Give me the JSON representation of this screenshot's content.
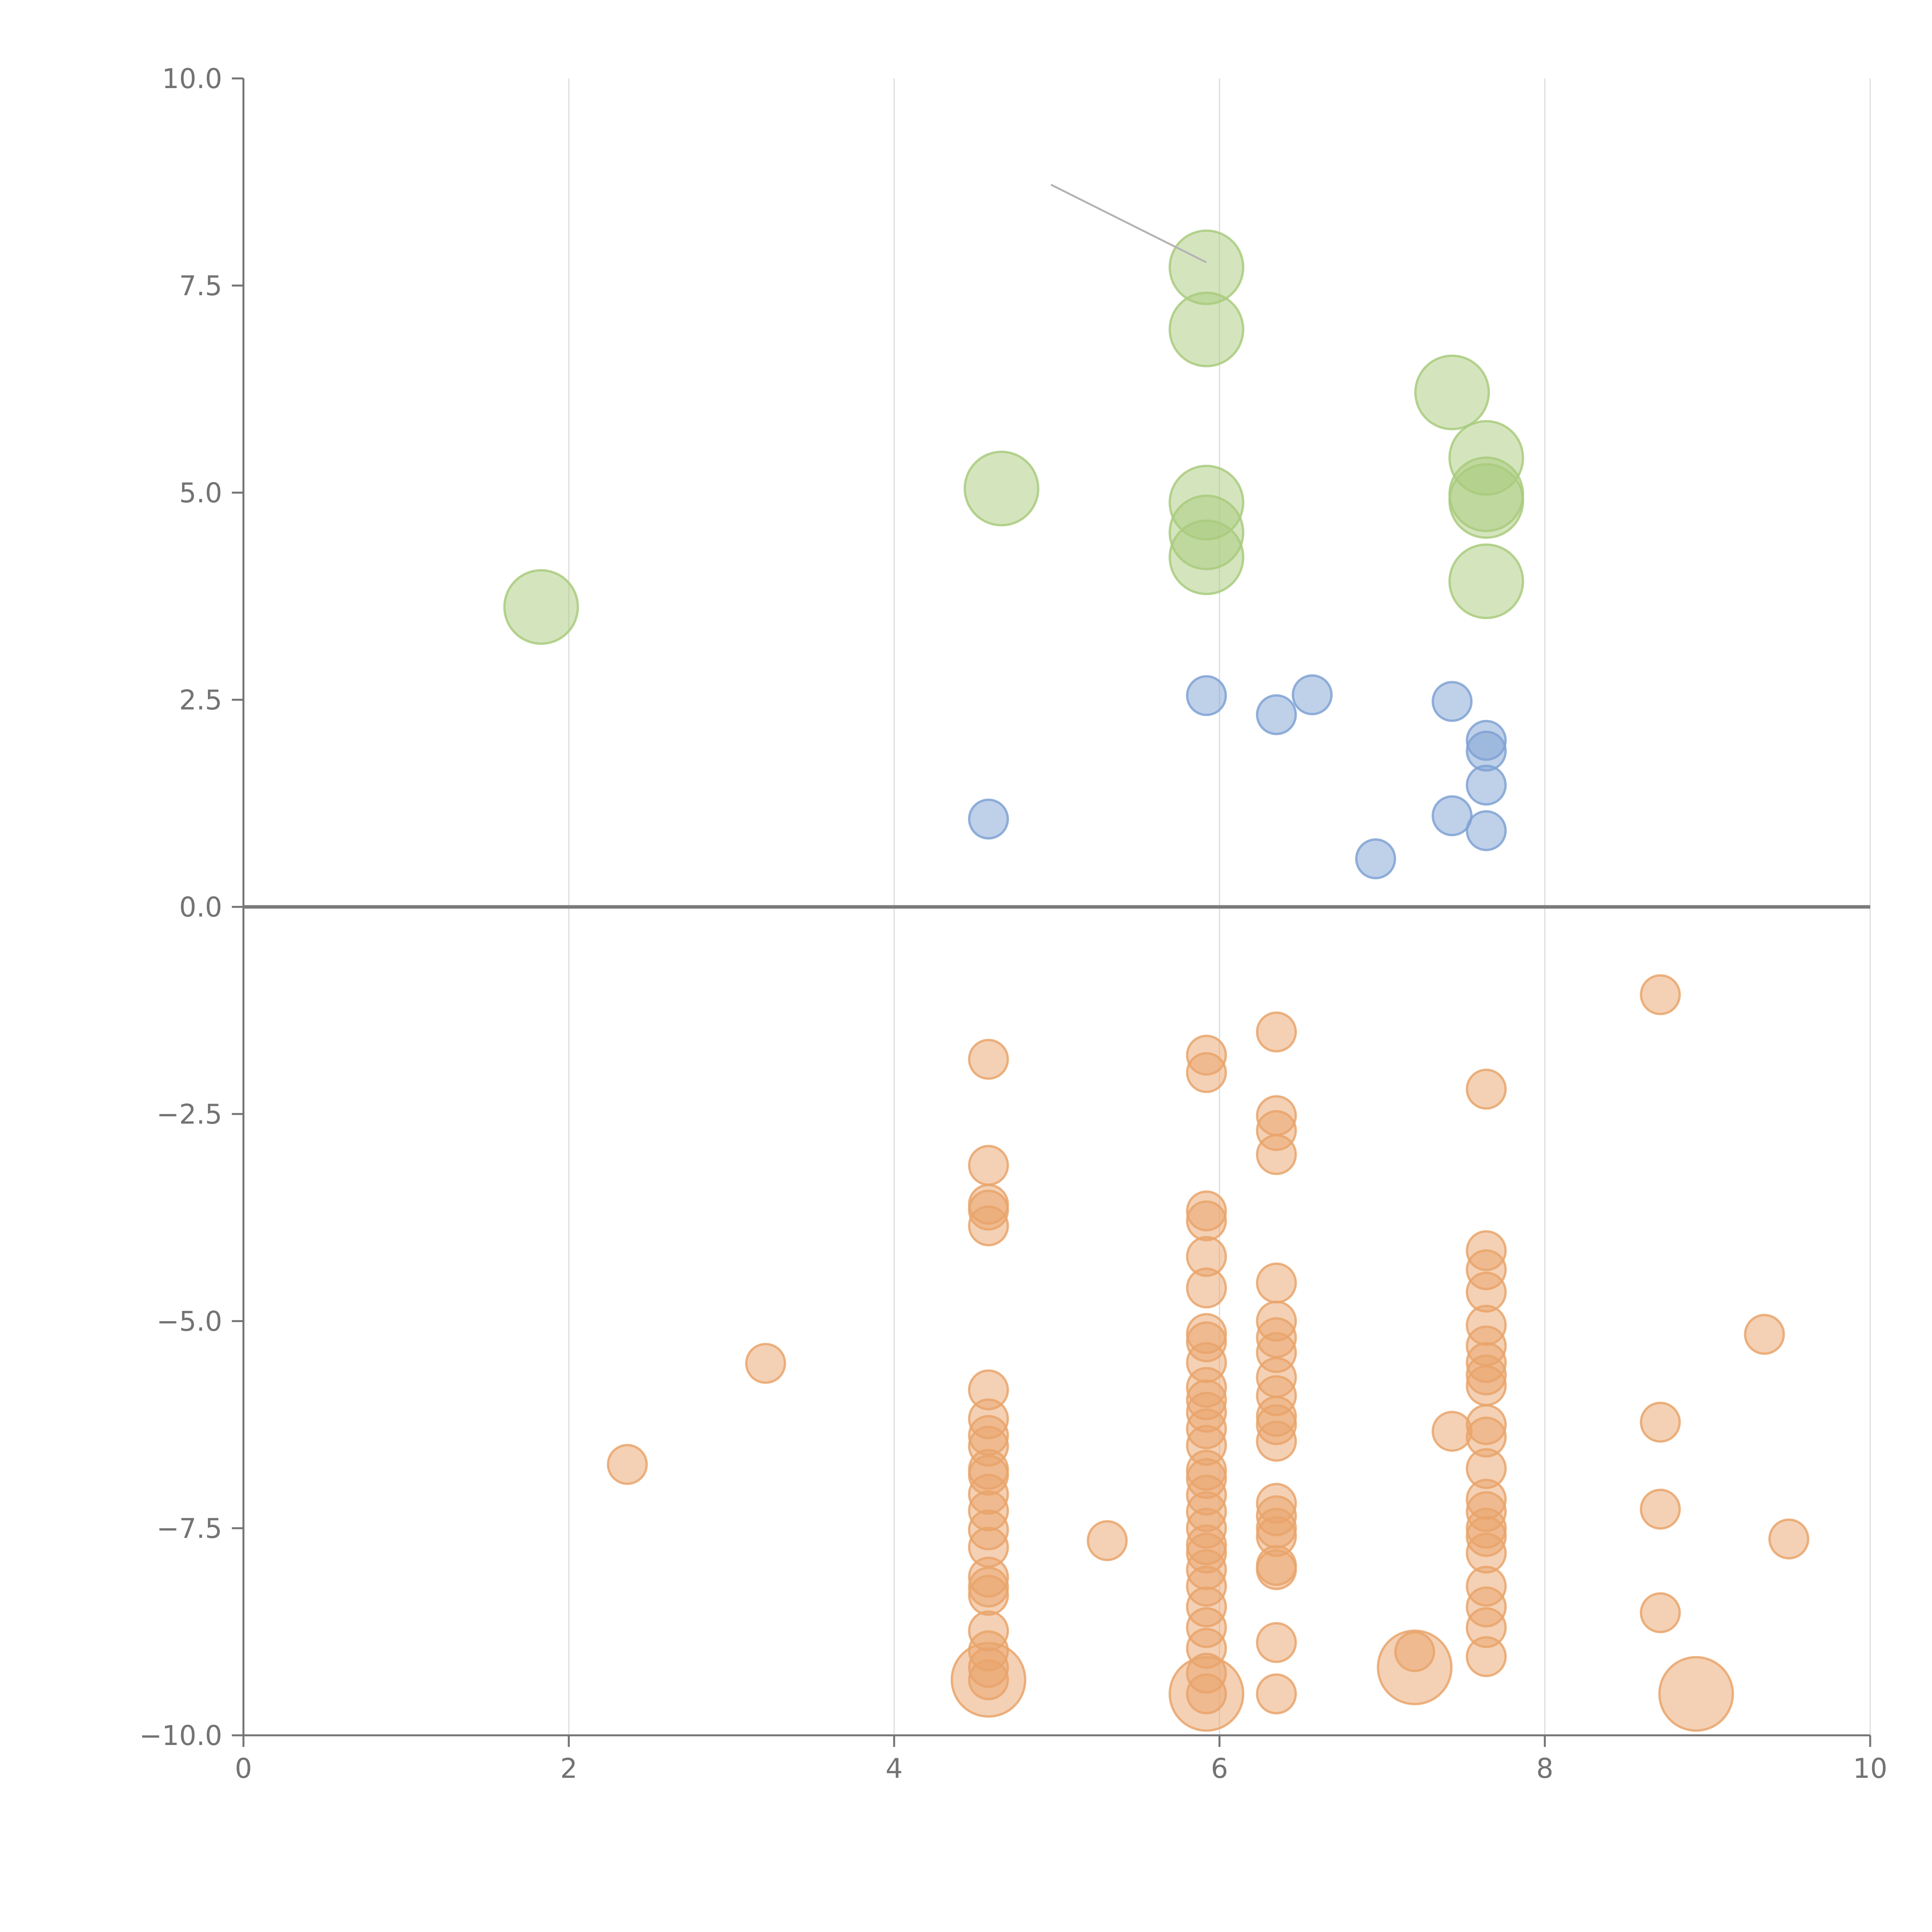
{
  "chart_data": {
    "type": "scatter",
    "title": "",
    "xlabel": "",
    "ylabel": "",
    "xlim": [
      0,
      10
    ],
    "ylim": [
      -10,
      10
    ],
    "x_ticks": [
      "0",
      "2",
      "4",
      "6",
      "8",
      "10"
    ],
    "y_ticks": [
      "10.0",
      "7.5",
      "5.0",
      "2.5",
      "0.0",
      "−2.5",
      "−5.0",
      "−7.5",
      "−10.0"
    ],
    "grid": "vertical",
    "legend": "none",
    "series": [
      {
        "color": "#a9cb7e",
        "size": "large",
        "points": [
          [
            1.83,
            3.62
          ],
          [
            4.66,
            5.05
          ],
          [
            5.92,
            7.72
          ],
          [
            5.92,
            6.97
          ],
          [
            5.92,
            4.88
          ],
          [
            5.92,
            4.52
          ],
          [
            5.92,
            4.22
          ],
          [
            7.43,
            6.21
          ],
          [
            7.64,
            5.42
          ],
          [
            7.64,
            4.98
          ],
          [
            7.64,
            4.9
          ],
          [
            7.64,
            3.93
          ]
        ]
      },
      {
        "color": "#7fa2d4",
        "size": "small",
        "points": [
          [
            4.58,
            1.06
          ],
          [
            5.92,
            2.55
          ],
          [
            6.35,
            2.32
          ],
          [
            6.57,
            2.56
          ],
          [
            6.96,
            0.58
          ],
          [
            7.43,
            2.48
          ],
          [
            7.43,
            1.1
          ],
          [
            7.64,
            2.01
          ],
          [
            7.64,
            1.88
          ],
          [
            7.64,
            1.47
          ],
          [
            7.64,
            0.92
          ]
        ]
      },
      {
        "color": "#e9a46b",
        "size": "small",
        "points": [
          [
            2.36,
            -6.73
          ],
          [
            3.21,
            -5.51
          ],
          [
            5.31,
            -7.65
          ],
          [
            7.2,
            -8.99
          ],
          [
            7.43,
            -6.33
          ],
          [
            8.71,
            -1.06
          ],
          [
            8.71,
            -6.22
          ],
          [
            8.71,
            -7.27
          ],
          [
            8.71,
            -8.52
          ],
          [
            9.35,
            -5.16
          ],
          [
            9.5,
            -7.63
          ],
          [
            4.58,
            -1.84
          ],
          [
            4.58,
            -3.12
          ],
          [
            4.58,
            -3.59
          ],
          [
            4.58,
            -3.66
          ],
          [
            4.58,
            -3.85
          ],
          [
            4.58,
            -5.83
          ],
          [
            4.58,
            -6.18
          ],
          [
            4.58,
            -6.38
          ],
          [
            4.58,
            -6.51
          ],
          [
            4.58,
            -6.79
          ],
          [
            4.58,
            -6.86
          ],
          [
            4.58,
            -7.09
          ],
          [
            4.58,
            -7.29
          ],
          [
            4.58,
            -7.52
          ],
          [
            4.58,
            -7.73
          ],
          [
            4.58,
            -8.09
          ],
          [
            4.58,
            -8.21
          ],
          [
            4.58,
            -8.31
          ],
          [
            4.58,
            -8.74
          ],
          [
            4.58,
            -8.98
          ],
          [
            4.58,
            -9.18
          ],
          [
            4.58,
            -9.33
          ],
          [
            5.92,
            -1.79
          ],
          [
            5.92,
            -2.0
          ],
          [
            5.92,
            -3.67
          ],
          [
            5.92,
            -3.79
          ],
          [
            5.92,
            -4.22
          ],
          [
            5.92,
            -4.6
          ],
          [
            5.92,
            -5.15
          ],
          [
            5.92,
            -5.25
          ],
          [
            5.92,
            -5.5
          ],
          [
            5.92,
            -5.8
          ],
          [
            5.92,
            -5.95
          ],
          [
            5.92,
            -6.1
          ],
          [
            5.92,
            -6.3
          ],
          [
            5.92,
            -6.5
          ],
          [
            5.92,
            -6.8
          ],
          [
            5.92,
            -6.9
          ],
          [
            5.92,
            -7.1
          ],
          [
            5.92,
            -7.3
          ],
          [
            5.92,
            -7.5
          ],
          [
            5.92,
            -7.7
          ],
          [
            5.92,
            -7.8
          ],
          [
            5.92,
            -8.0
          ],
          [
            5.92,
            -8.2
          ],
          [
            5.92,
            -8.45
          ],
          [
            5.92,
            -8.7
          ],
          [
            5.92,
            -8.95
          ],
          [
            5.92,
            -9.25
          ],
          [
            5.92,
            -9.5
          ],
          [
            6.35,
            -1.51
          ],
          [
            6.35,
            -2.52
          ],
          [
            6.35,
            -2.7
          ],
          [
            6.35,
            -2.99
          ],
          [
            6.35,
            -4.54
          ],
          [
            6.35,
            -5.0
          ],
          [
            6.35,
            -5.2
          ],
          [
            6.35,
            -5.38
          ],
          [
            6.35,
            -5.68
          ],
          [
            6.35,
            -5.9
          ],
          [
            6.35,
            -6.15
          ],
          [
            6.35,
            -6.25
          ],
          [
            6.35,
            -6.45
          ],
          [
            6.35,
            -7.2
          ],
          [
            6.35,
            -7.35
          ],
          [
            6.35,
            -7.5
          ],
          [
            6.35,
            -7.6
          ],
          [
            6.35,
            -7.95
          ],
          [
            6.35,
            -8.0
          ],
          [
            6.35,
            -8.88
          ],
          [
            6.35,
            -9.5
          ],
          [
            7.64,
            -2.2
          ],
          [
            7.64,
            -4.15
          ],
          [
            7.64,
            -4.38
          ],
          [
            7.64,
            -4.65
          ],
          [
            7.64,
            -5.05
          ],
          [
            7.64,
            -5.3
          ],
          [
            7.64,
            -5.5
          ],
          [
            7.64,
            -5.65
          ],
          [
            7.64,
            -5.78
          ],
          [
            7.64,
            -6.25
          ],
          [
            7.64,
            -6.4
          ],
          [
            7.64,
            -6.78
          ],
          [
            7.64,
            -7.15
          ],
          [
            7.64,
            -7.3
          ],
          [
            7.64,
            -7.5
          ],
          [
            7.64,
            -7.6
          ],
          [
            7.64,
            -7.8
          ],
          [
            7.64,
            -8.2
          ],
          [
            7.64,
            -8.45
          ],
          [
            7.64,
            -8.7
          ],
          [
            7.64,
            -9.05
          ]
        ]
      },
      {
        "color": "#e9a46b",
        "size": "large",
        "points": [
          [
            4.58,
            -9.33
          ],
          [
            5.92,
            -9.5
          ],
          [
            7.2,
            -9.18
          ],
          [
            8.93,
            -9.5
          ]
        ]
      }
    ]
  }
}
